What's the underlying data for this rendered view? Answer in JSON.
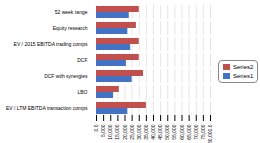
{
  "chart_data": {
    "type": "bar",
    "orientation": "horizontal",
    "categories": [
      "EV / LTM EBITDA transaction comps",
      "LBO",
      "DCF with synergies",
      "DCF",
      "EV / 2015 EBITDA trading comps",
      "Equity research",
      "52 week range"
    ],
    "series": [
      {
        "name": "Series2",
        "color": "#C0504D",
        "values": [
          35000,
          16000,
          33000,
          30000,
          30000,
          28000,
          30000
        ]
      },
      {
        "name": "Series1",
        "color": "#4472C4",
        "values": [
          22000,
          12000,
          25000,
          21000,
          24000,
          22000,
          23000
        ]
      }
    ],
    "xlim": [
      0,
      80000
    ],
    "xticks": [
      {
        "value": 0,
        "label": "0.0"
      },
      {
        "value": 5000,
        "label": "5,000"
      },
      {
        "value": 10000,
        "label": "10,000"
      },
      {
        "value": 15000,
        "label": "15,000"
      },
      {
        "value": 20000,
        "label": "20,000"
      },
      {
        "value": 25000,
        "label": "25,000"
      },
      {
        "value": 30000,
        "label": "30,000"
      },
      {
        "value": 35000,
        "label": "35,000"
      },
      {
        "value": 40000,
        "label": "40,000"
      },
      {
        "value": 45000,
        "label": "45,000"
      },
      {
        "value": 50000,
        "label": "50,000"
      },
      {
        "value": 55000,
        "label": "55,000"
      },
      {
        "value": 60000,
        "label": "60,000"
      },
      {
        "value": 65000,
        "label": "65,000"
      },
      {
        "value": 70000,
        "label": "70,000"
      },
      {
        "value": 75000,
        "label": "75,000"
      },
      {
        "value": 80000,
        "label": "80,000.0"
      }
    ],
    "grid": true,
    "legend": "right"
  }
}
